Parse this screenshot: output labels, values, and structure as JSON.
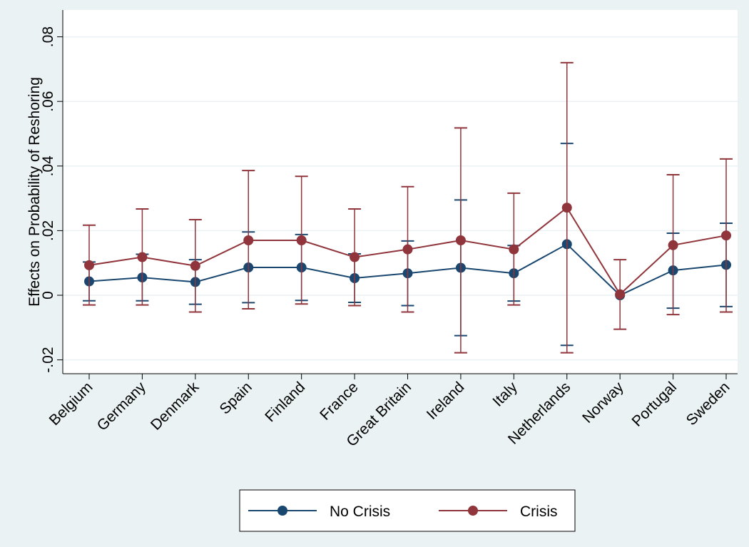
{
  "chart_data": {
    "type": "line",
    "title": "",
    "xlabel": "",
    "ylabel": "Effects on Probability of Reshoring",
    "ylim": [
      -0.025,
      0.085
    ],
    "yticks": [
      -0.02,
      0,
      0.02,
      0.04,
      0.06,
      0.08
    ],
    "ytick_labels": [
      "-.02",
      "0",
      ".02",
      ".04",
      ".06",
      ".08"
    ],
    "categories": [
      "Belgium",
      "Germany",
      "Denmark",
      "Spain",
      "Finland",
      "France",
      "Great Britain",
      "Ireland",
      "Italy",
      "Netherlands",
      "Norway",
      "Portugal",
      "Sweden"
    ],
    "grid": true,
    "legend_position": "bottom",
    "series": [
      {
        "name": "No Crisis",
        "color": "#1a476f",
        "marker": "circle",
        "values": [
          0.0043,
          0.0055,
          0.0041,
          0.0086,
          0.0086,
          0.0053,
          0.0068,
          0.0085,
          0.0068,
          0.0158,
          0.0,
          0.0077,
          0.0094
        ],
        "ci_low": [
          -0.0017,
          -0.0017,
          -0.0028,
          -0.0023,
          -0.0016,
          -0.0022,
          -0.0032,
          -0.0125,
          -0.0018,
          -0.0155,
          0.0,
          -0.004,
          -0.0035
        ],
        "ci_high": [
          0.0103,
          0.0127,
          0.011,
          0.0196,
          0.0188,
          0.0128,
          0.0168,
          0.0295,
          0.0154,
          0.047,
          0.0,
          0.0192,
          0.0223
        ]
      },
      {
        "name": "Crisis",
        "color": "#90353b",
        "marker": "circle",
        "values": [
          0.0093,
          0.0118,
          0.0091,
          0.017,
          0.017,
          0.0118,
          0.0142,
          0.017,
          0.0142,
          0.0271,
          0.0003,
          0.0155,
          0.0185
        ],
        "ci_low": [
          -0.003,
          -0.003,
          -0.0052,
          -0.0042,
          -0.0027,
          -0.0032,
          -0.0052,
          -0.0178,
          -0.003,
          -0.0178,
          -0.0105,
          -0.006,
          -0.0052
        ],
        "ci_high": [
          0.0217,
          0.0267,
          0.0234,
          0.0386,
          0.0368,
          0.0267,
          0.0336,
          0.0518,
          0.0316,
          0.072,
          0.011,
          0.0373,
          0.0422
        ]
      }
    ]
  }
}
